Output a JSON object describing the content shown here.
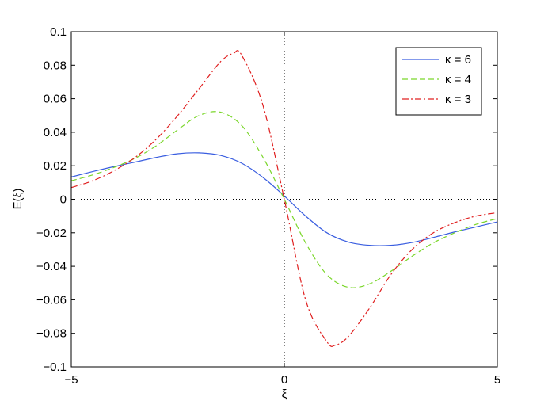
{
  "chart_data": {
    "type": "line",
    "title": "",
    "xlabel": "ξ",
    "ylabel": "E(ξ)",
    "xlim": [
      -5,
      5
    ],
    "ylim": [
      -0.1,
      0.1
    ],
    "xticks": [
      -5,
      0,
      5
    ],
    "xtick_labels": [
      "−5",
      "0",
      "5"
    ],
    "yticks": [
      0.1,
      0.08,
      0.06,
      0.04,
      0.02,
      0,
      -0.02,
      -0.04,
      -0.06,
      -0.08,
      -0.1
    ],
    "ytick_labels": [
      "0.1",
      "0.08",
      "0.06",
      "0.04",
      "0.02",
      "0",
      "−0.02",
      "−0.04",
      "−0.06",
      "−0.08",
      "−0.1"
    ],
    "grid": false,
    "reference_lines": [
      "x = 0 (dotted)",
      "y = 0 (dotted)"
    ],
    "legend_position": "top-right",
    "series": [
      {
        "name": "κ = 6",
        "color": "#3a5ee0",
        "dash": "solid",
        "x": [
          -5,
          -4.5,
          -4,
          -3.5,
          -3,
          -2.5,
          -2,
          -1.5,
          -1,
          -0.5,
          0,
          0.5,
          1,
          1.5,
          2,
          2.5,
          3,
          3.5,
          4,
          4.5,
          5
        ],
        "y": [
          0.0133,
          0.0165,
          0.0195,
          0.0222,
          0.025,
          0.0272,
          0.0277,
          0.0262,
          0.0215,
          0.013,
          0.002,
          -0.01,
          -0.02,
          -0.0255,
          -0.0275,
          -0.0275,
          -0.0258,
          -0.0228,
          -0.0195,
          -0.0165,
          -0.0135
        ]
      },
      {
        "name": "κ = 4",
        "color": "#7ad62a",
        "dash": "dashed",
        "x": [
          -5,
          -4.5,
          -4,
          -3.5,
          -3,
          -2.5,
          -2,
          -1.5,
          -1,
          -0.5,
          0,
          0.5,
          1,
          1.5,
          2,
          2.5,
          3,
          3.5,
          4,
          4.5,
          5
        ],
        "y": [
          0.011,
          0.0145,
          0.019,
          0.0245,
          0.032,
          0.0415,
          0.05,
          0.052,
          0.044,
          0.025,
          0.0,
          -0.026,
          -0.045,
          -0.0525,
          -0.0505,
          -0.043,
          -0.034,
          -0.026,
          -0.02,
          -0.015,
          -0.0115
        ]
      },
      {
        "name": "κ = 3",
        "color": "#e02020",
        "dash": "dashdot",
        "x": [
          -5,
          -4.5,
          -4,
          -3.5,
          -3,
          -2.5,
          -2,
          -1.5,
          -1.2,
          -1,
          -0.5,
          0,
          0.5,
          1,
          1.2,
          1.5,
          2,
          2.5,
          3,
          3.5,
          4,
          4.5,
          5
        ],
        "y": [
          0.007,
          0.011,
          0.017,
          0.025,
          0.036,
          0.05,
          0.066,
          0.082,
          0.087,
          0.086,
          0.056,
          0.0,
          -0.06,
          -0.085,
          -0.087,
          -0.082,
          -0.065,
          -0.045,
          -0.03,
          -0.02,
          -0.014,
          -0.01,
          -0.008
        ]
      }
    ]
  }
}
